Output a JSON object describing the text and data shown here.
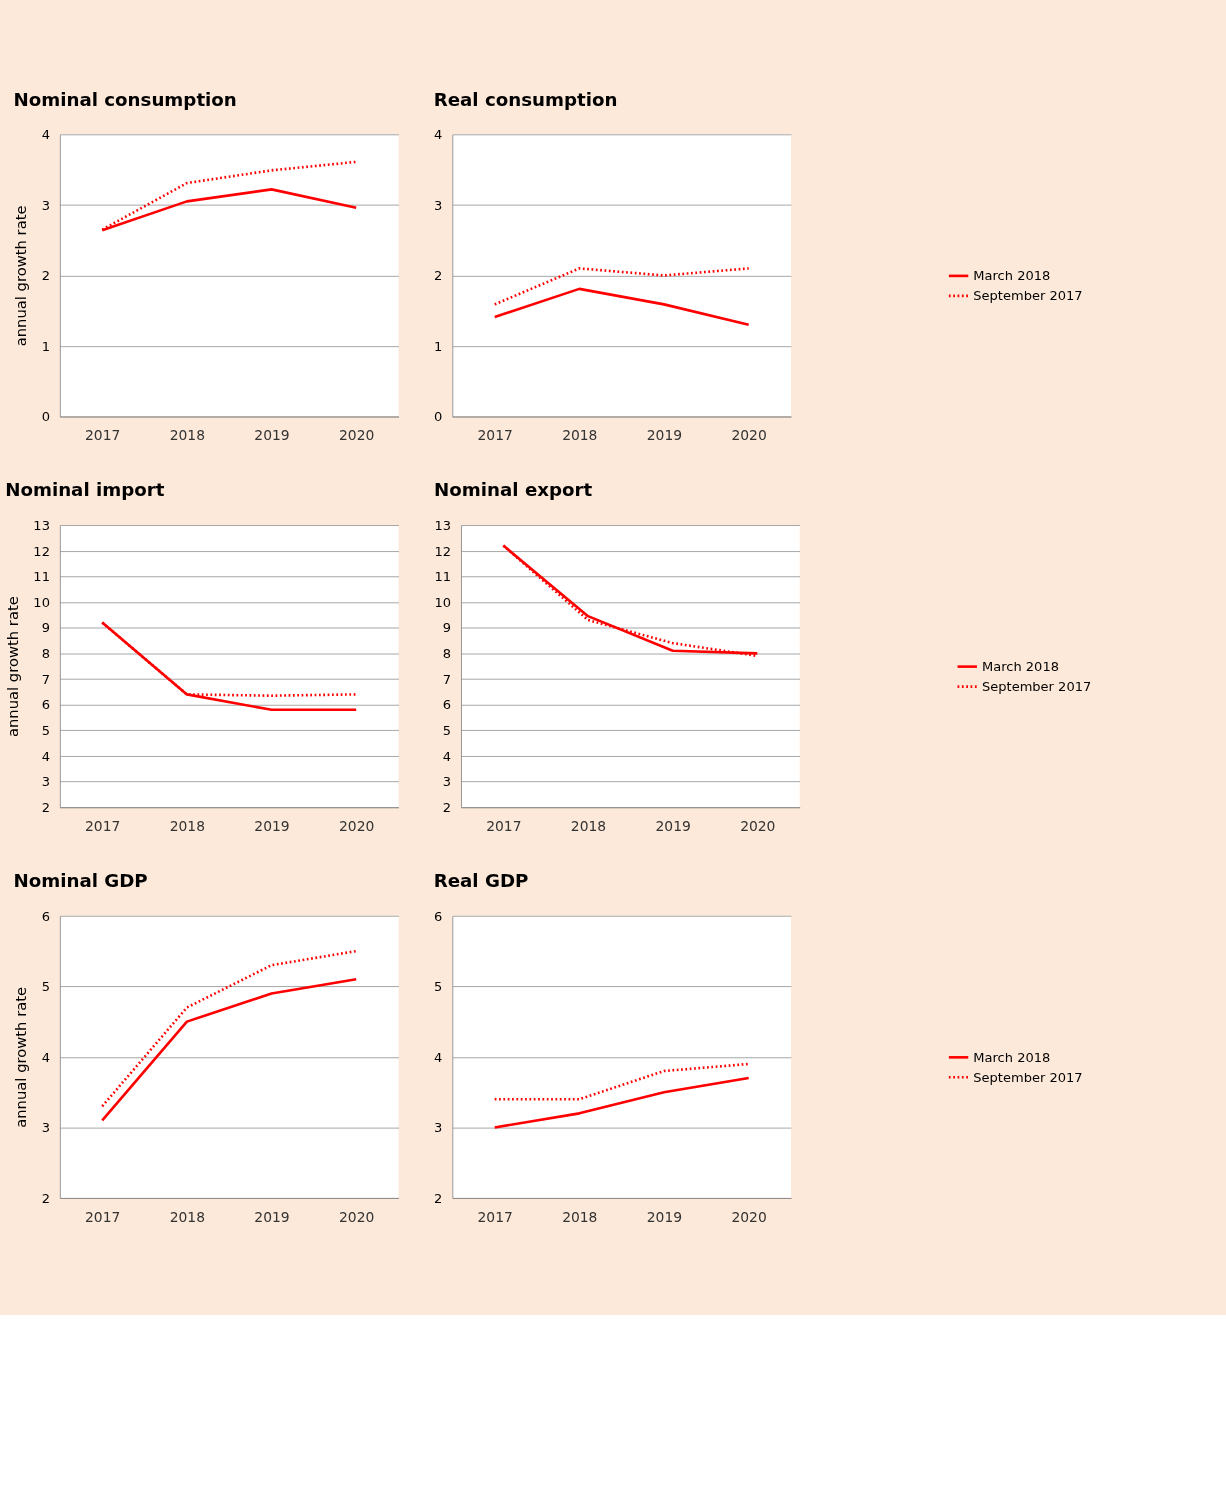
{
  "chart_data": [
    {
      "type": "line",
      "title": "Nominal consumption",
      "ylabel": "annual growth rate",
      "categories": [
        "2017",
        "2018",
        "2019",
        "2020"
      ],
      "ylim": [
        0,
        4
      ],
      "yticks": [
        0,
        1,
        2,
        3,
        4
      ],
      "grid": "y",
      "series": [
        {
          "color": "#ff0000",
          "line_style": "solid",
          "values": [
            2.64,
            3.05,
            3.22,
            2.96
          ]
        },
        {
          "color": "#ff0000",
          "line_style": "dotted",
          "values": [
            2.65,
            3.31,
            3.49,
            3.61
          ]
        }
      ]
    },
    {
      "type": "line",
      "title": "Real consumption",
      "categories": [
        "2017",
        "2018",
        "2019",
        "2020"
      ],
      "ylim": [
        0,
        4
      ],
      "yticks": [
        0,
        1,
        2,
        3,
        4
      ],
      "grid": "y",
      "legend": "right",
      "series": [
        {
          "name": "March 2018",
          "color": "#ff0000",
          "line_style": "solid",
          "values": [
            1.41,
            1.81,
            1.59,
            1.3
          ]
        },
        {
          "name": "September 2017",
          "color": "#ff0000",
          "line_style": "dotted",
          "values": [
            1.59,
            2.1,
            2.0,
            2.1
          ]
        }
      ]
    },
    {
      "type": "line",
      "title": "Nominal import",
      "ylabel": "annual growth rate",
      "categories": [
        "2017",
        "2018",
        "2019",
        "2020"
      ],
      "ylim": [
        2,
        13
      ],
      "yticks": [
        2,
        3,
        4,
        5,
        6,
        7,
        8,
        9,
        10,
        11,
        12,
        13
      ],
      "grid": "y",
      "series": [
        {
          "color": "#ff0000",
          "line_style": "solid",
          "values": [
            9.2,
            6.4,
            5.8,
            5.8
          ]
        },
        {
          "color": "#ff0000",
          "line_style": "dotted",
          "values": [
            9.2,
            6.4,
            6.35,
            6.4
          ]
        }
      ]
    },
    {
      "type": "line",
      "title": "Nominal export",
      "categories": [
        "2017",
        "2018",
        "2019",
        "2020"
      ],
      "ylim": [
        2,
        13
      ],
      "yticks": [
        2,
        3,
        4,
        5,
        6,
        7,
        8,
        9,
        10,
        11,
        12,
        13
      ],
      "grid": "y",
      "legend": "right",
      "series": [
        {
          "name": "March 2018",
          "color": "#ff0000",
          "line_style": "solid",
          "values": [
            12.2,
            9.45,
            8.1,
            8.0
          ]
        },
        {
          "name": "September 2017",
          "color": "#ff0000",
          "line_style": "dotted",
          "values": [
            12.2,
            9.3,
            8.4,
            7.9
          ]
        }
      ]
    },
    {
      "type": "line",
      "title": "Nominal GDP",
      "ylabel": "annual growth rate",
      "categories": [
        "2017",
        "2018",
        "2019",
        "2020"
      ],
      "ylim": [
        2,
        6
      ],
      "yticks": [
        2,
        3,
        4,
        5,
        6
      ],
      "grid": "y",
      "series": [
        {
          "color": "#ff0000",
          "line_style": "solid",
          "values": [
            3.1,
            4.5,
            4.9,
            5.1
          ]
        },
        {
          "color": "#ff0000",
          "line_style": "dotted",
          "values": [
            3.3,
            4.7,
            5.3,
            5.5
          ]
        }
      ]
    },
    {
      "type": "line",
      "title": "Real GDP",
      "categories": [
        "2017",
        "2018",
        "2019",
        "2020"
      ],
      "ylim": [
        2,
        6
      ],
      "yticks": [
        2,
        3,
        4,
        5,
        6
      ],
      "grid": "y",
      "legend": "right",
      "series": [
        {
          "name": "March 2018",
          "color": "#ff0000",
          "line_style": "solid",
          "values": [
            3.0,
            3.2,
            3.5,
            3.7
          ]
        },
        {
          "name": "September 2017",
          "color": "#ff0000",
          "line_style": "dotted",
          "values": [
            3.4,
            3.4,
            3.8,
            3.9
          ]
        }
      ]
    }
  ]
}
